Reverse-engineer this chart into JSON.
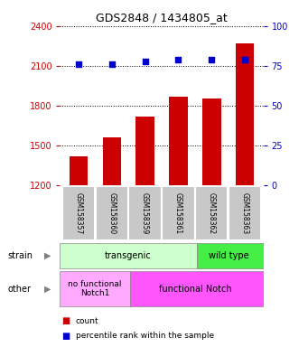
{
  "title": "GDS2848 / 1434805_at",
  "samples": [
    "GSM158357",
    "GSM158360",
    "GSM158359",
    "GSM158361",
    "GSM158362",
    "GSM158363"
  ],
  "counts": [
    1420,
    1560,
    1720,
    1870,
    1855,
    2270
  ],
  "percentiles": [
    76,
    76,
    78,
    79,
    79,
    79
  ],
  "ylim_left": [
    1200,
    2400
  ],
  "ylim_right": [
    0,
    100
  ],
  "yticks_left": [
    1200,
    1500,
    1800,
    2100,
    2400
  ],
  "yticks_right": [
    0,
    25,
    50,
    75,
    100
  ],
  "bar_color": "#cc0000",
  "dot_color": "#0000cc",
  "bar_width": 0.55,
  "strain_transgenic_label": "transgenic",
  "strain_wildtype_label": "wild type",
  "other_nofunctional_label": "no functional\nNotch1",
  "other_functional_label": "functional Notch",
  "strain_color_transgenic": "#ccffcc",
  "strain_color_wildtype": "#44ee44",
  "other_nofunctional_color": "#ffaaff",
  "other_functional_color": "#ff55ff",
  "legend_count_label": "count",
  "legend_percentile_label": "percentile rank within the sample",
  "strain_row_label": "strain",
  "other_row_label": "other",
  "left_axis_color": "#cc0000",
  "right_axis_color": "#0000cc",
  "tick_label_bg": "#c8c8c8"
}
